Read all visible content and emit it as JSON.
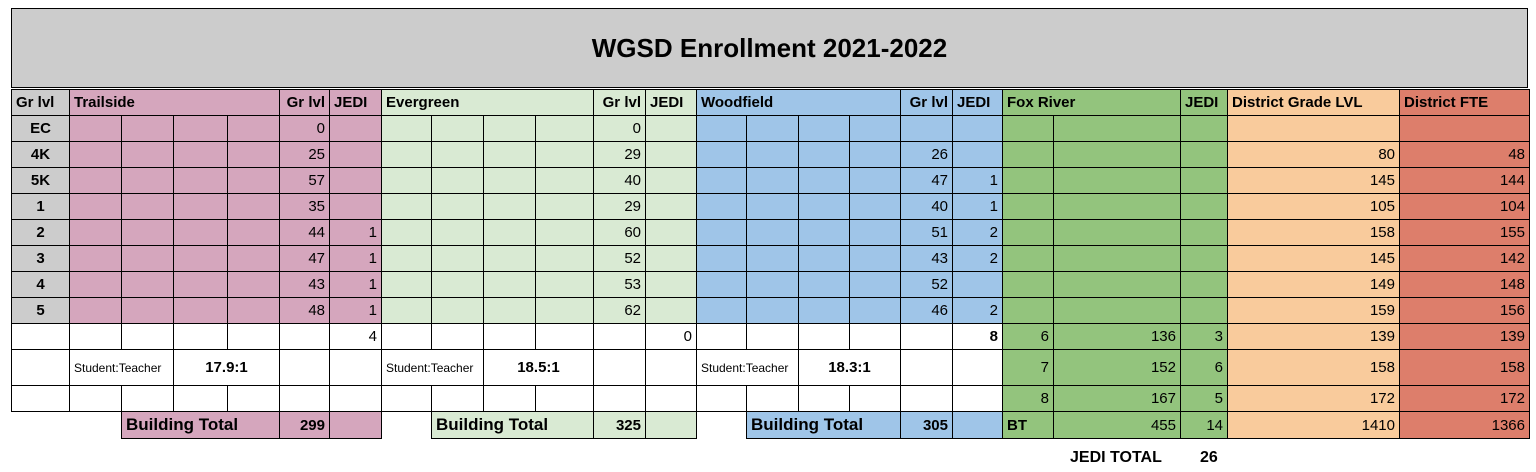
{
  "title": "WGSD Enrollment 2021-2022",
  "headers": {
    "gr_lvl": "Gr lvl",
    "trailside": "Trailside",
    "trailside_gr_lvl": "Gr lvl",
    "trailside_jedi": "JEDI",
    "evergreen": "Evergreen",
    "evergreen_gr_lvl": "Gr lvl",
    "evergreen_jedi": "JEDI",
    "woodfield": "Woodfield",
    "woodfield_gr_lvl": "Gr lvl",
    "woodfield_jedi": "JEDI",
    "fox_river": "Fox River",
    "fox_river_jedi": "JEDI",
    "district_grade_lvl": "District Grade LVL",
    "district_fte": "District FTE"
  },
  "grades": [
    {
      "grade": "EC",
      "trailside": "0",
      "trailside_jedi": "",
      "evergreen": "0",
      "evergreen_jedi": "",
      "woodfield": "",
      "woodfield_jedi": "",
      "district": "",
      "fte": ""
    },
    {
      "grade": "4K",
      "trailside": "25",
      "trailside_jedi": "",
      "evergreen": "29",
      "evergreen_jedi": "",
      "woodfield": "26",
      "woodfield_jedi": "",
      "district": "80",
      "fte": "48"
    },
    {
      "grade": "5K",
      "trailside": "57",
      "trailside_jedi": "",
      "evergreen": "40",
      "evergreen_jedi": "",
      "woodfield": "47",
      "woodfield_jedi": "1",
      "district": "145",
      "fte": "144"
    },
    {
      "grade": "1",
      "trailside": "35",
      "trailside_jedi": "",
      "evergreen": "29",
      "evergreen_jedi": "",
      "woodfield": "40",
      "woodfield_jedi": "1",
      "district": "105",
      "fte": "104"
    },
    {
      "grade": "2",
      "trailside": "44",
      "trailside_jedi": "1",
      "evergreen": "60",
      "evergreen_jedi": "",
      "woodfield": "51",
      "woodfield_jedi": "2",
      "district": "158",
      "fte": "155"
    },
    {
      "grade": "3",
      "trailside": "47",
      "trailside_jedi": "1",
      "evergreen": "52",
      "evergreen_jedi": "",
      "woodfield": "43",
      "woodfield_jedi": "2",
      "district": "145",
      "fte": "142"
    },
    {
      "grade": "4",
      "trailside": "43",
      "trailside_jedi": "1",
      "evergreen": "53",
      "evergreen_jedi": "",
      "woodfield": "52",
      "woodfield_jedi": "",
      "district": "149",
      "fte": "148"
    },
    {
      "grade": "5",
      "trailside": "48",
      "trailside_jedi": "1",
      "evergreen": "62",
      "evergreen_jedi": "",
      "woodfield": "46",
      "woodfield_jedi": "2",
      "district": "159",
      "fte": "156"
    }
  ],
  "jedi_sums": {
    "trailside": "4",
    "evergreen": "0",
    "woodfield": "8"
  },
  "fox_river": [
    {
      "grade": "6",
      "count": "136",
      "jedi": "3",
      "district": "139",
      "fte": "139"
    },
    {
      "grade": "7",
      "count": "152",
      "jedi": "6",
      "district": "158",
      "fte": "158"
    },
    {
      "grade": "8",
      "count": "167",
      "jedi": "5",
      "district": "172",
      "fte": "172"
    }
  ],
  "ratios": {
    "label": "Student:Teacher",
    "trailside": "17.9:1",
    "evergreen": "18.5:1",
    "woodfield": "18.3:1"
  },
  "building_totals": {
    "label": "Building Total",
    "trailside": "299",
    "evergreen": "325",
    "woodfield": "305",
    "bt_label": "BT",
    "fox_river": "455",
    "fox_river_jedi": "14",
    "district": "1410",
    "fte": "1366"
  },
  "jedi_total": {
    "label": "JEDI TOTAL",
    "value": "26"
  },
  "colors": {
    "title": "#cccccc",
    "trailside": "#d5a6bd",
    "evergreen": "#d9ead3",
    "woodfield": "#9fc5e8",
    "fox_river": "#93c47d",
    "district_grade": "#f9cb9c",
    "district_fte": "#dd7e6b"
  }
}
